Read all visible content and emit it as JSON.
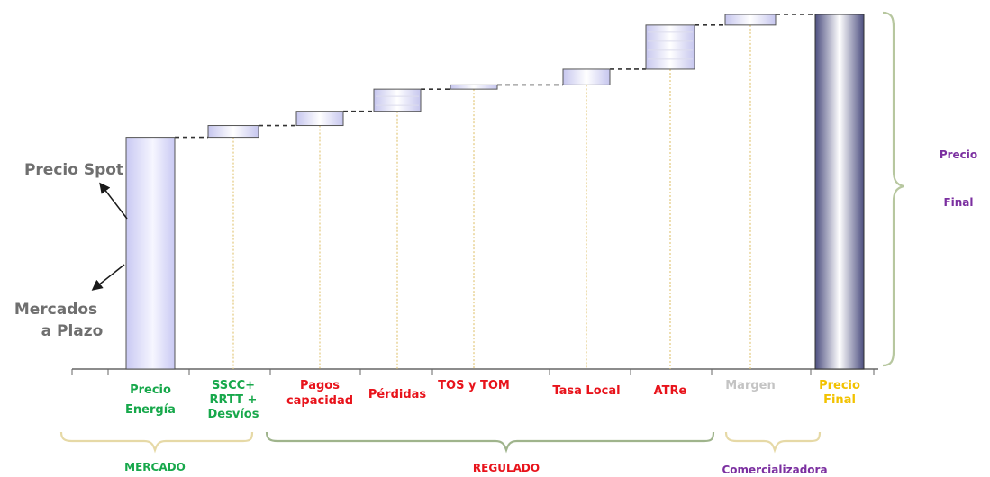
{
  "chart_data": {
    "type": "waterfall",
    "categories": [
      [
        "Precio",
        "Energía"
      ],
      [
        "SSCC+",
        "RRTT +",
        "Desvíos"
      ],
      [
        "Pagos",
        "capacidad"
      ],
      [
        "Pérdidas"
      ],
      [
        "TOS y TOM"
      ],
      [
        "Tasa Local"
      ],
      [
        "ATRe"
      ],
      [
        "Margen"
      ],
      [
        "Precio",
        "Final"
      ]
    ],
    "category_colors": [
      "#17a84b",
      "#17a84b",
      "#e8131b",
      "#e8131b",
      "#e8131b",
      "#e8131b",
      "#e8131b",
      "#c4c4c4",
      "#f2c200"
    ],
    "segments": [
      {
        "start": 0,
        "end": 65.0,
        "kind": "total"
      },
      {
        "start": 65.0,
        "end": 68.3,
        "kind": "step"
      },
      {
        "start": 68.3,
        "end": 72.3,
        "kind": "step"
      },
      {
        "start": 72.3,
        "end": 78.5,
        "kind": "step"
      },
      {
        "start": 78.5,
        "end": 79.7,
        "kind": "step"
      },
      {
        "start": 79.7,
        "end": 84.1,
        "kind": "step"
      },
      {
        "start": 84.1,
        "end": 96.5,
        "kind": "step"
      },
      {
        "start": 96.5,
        "end": 99.5,
        "kind": "step"
      },
      {
        "start": 0,
        "end": 99.5,
        "kind": "final"
      }
    ],
    "ylim": [
      0,
      100
    ],
    "side_labels": {
      "spot": "Precio Spot",
      "plazo_line1": "Mercados",
      "plazo_line2": "a Plazo"
    },
    "right_label": [
      "Precio",
      "Final"
    ],
    "groups": [
      {
        "label": "MERCADO",
        "color": "#17a84b",
        "brace_color": "#e6d9a6"
      },
      {
        "label": "REGULADO",
        "color": "#e8131b",
        "brace_color": "#9fb48c"
      },
      {
        "label": "Comercializadora",
        "color": "#7b2fa0",
        "brace_color": "#e6d9a6"
      }
    ],
    "right_label_color": "#7b2fa0",
    "right_brace_color": "#b7c79f"
  }
}
